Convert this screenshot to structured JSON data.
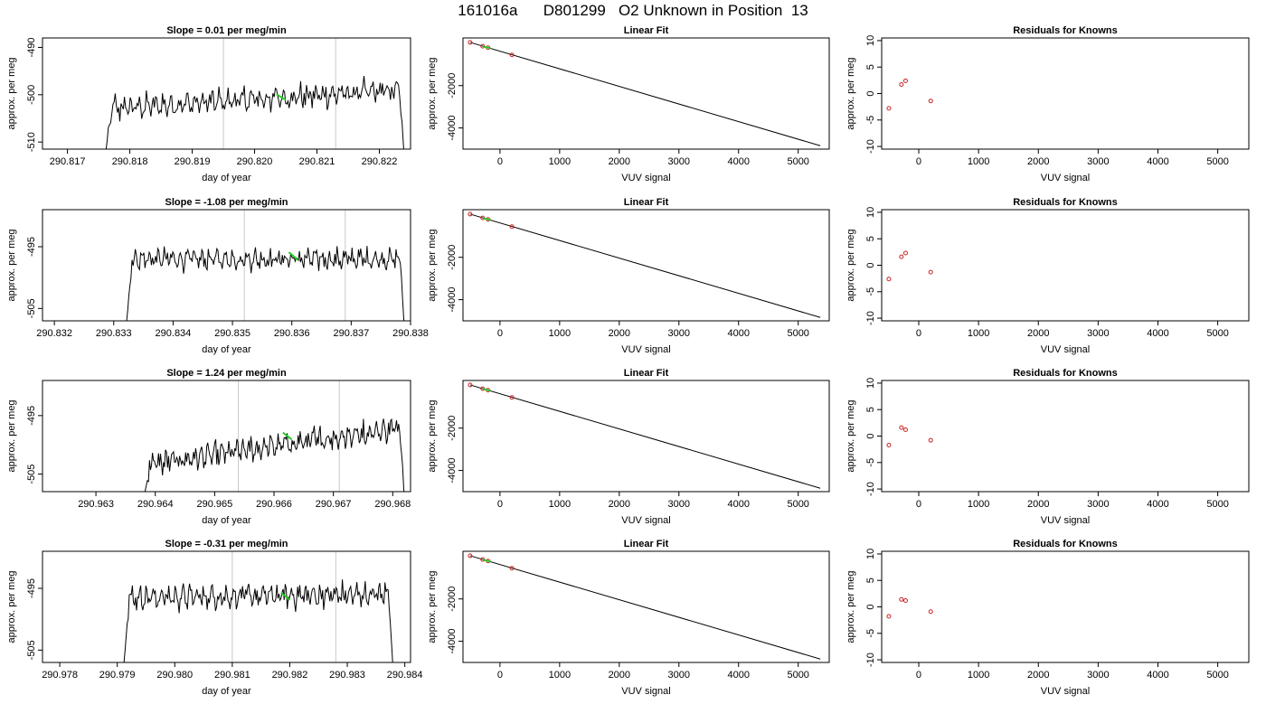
{
  "figure_title": "161016a      D801299   O2 Unknown in Position  13",
  "colors": {
    "trace": "#000000",
    "highlight": "#22cc22",
    "residual": "#cc2222",
    "marker_line": "#c8c8c8"
  },
  "chart_data": [
    {
      "type": "line",
      "row": 0,
      "kind": "timeseries",
      "title": "Slope =  0.01  per meg/min",
      "xlabel": "day of year",
      "ylabel": "approx. per meg",
      "xlim": [
        290.8166,
        290.8225
      ],
      "ylim": [
        -511.5,
        -488
      ],
      "xticks": [
        290.817,
        290.818,
        290.819,
        290.82,
        290.821,
        290.822
      ],
      "xtick_labels": [
        "290.817",
        "290.818",
        "290.819",
        "290.820",
        "290.821",
        "290.822"
      ],
      "yticks": [
        -510,
        -500,
        -490
      ],
      "ytick_labels": [
        "-510",
        "-500",
        "-490"
      ],
      "t_start": 290.8176,
      "t_end": 290.8224,
      "base": -503.0,
      "rise": 4.0,
      "amp": 2.2,
      "vlines": [
        290.8195,
        290.8213
      ],
      "highlight": [
        290.82035,
        290.8205
      ],
      "highlight_y": -500.5
    },
    {
      "type": "line",
      "row": 1,
      "kind": "timeseries",
      "title": "Slope =  -1.08  per meg/min",
      "xlabel": "day of year",
      "ylabel": "approx. per meg",
      "xlim": [
        290.8318,
        290.838
      ],
      "ylim": [
        -507,
        -489
      ],
      "xticks": [
        290.832,
        290.833,
        290.834,
        290.835,
        290.836,
        290.837,
        290.838
      ],
      "xtick_labels": [
        "290.832",
        "290.833",
        "290.834",
        "290.835",
        "290.836",
        "290.837",
        "290.838"
      ],
      "yticks": [
        -505,
        -495
      ],
      "ytick_labels": [
        "-505",
        "-495"
      ],
      "t_start": 290.8332,
      "t_end": 290.8379,
      "base": -497.0,
      "rise": 0.0,
      "amp": 1.4,
      "vlines": [
        290.8352,
        290.8369
      ],
      "highlight": [
        290.83595,
        290.8361
      ],
      "highlight_y": -496.5
    },
    {
      "type": "line",
      "row": 2,
      "kind": "timeseries",
      "title": "Slope =  1.24  per meg/min",
      "xlabel": "day of year",
      "ylabel": "approx. per meg",
      "xlim": [
        290.9621,
        290.9683
      ],
      "ylim": [
        -508,
        -489
      ],
      "xticks": [
        290.963,
        290.964,
        290.965,
        290.966,
        290.967,
        290.968
      ],
      "xtick_labels": [
        "290.963",
        "290.964",
        "290.965",
        "290.966",
        "290.967",
        "290.968"
      ],
      "yticks": [
        -505,
        -495
      ],
      "ytick_labels": [
        "-505",
        "-495"
      ],
      "t_start": 290.9638,
      "t_end": 290.9682,
      "base": -503.5,
      "rise": 6.5,
      "amp": 1.8,
      "vlines": [
        290.9654,
        290.9671
      ],
      "highlight": [
        290.96615,
        290.9663
      ],
      "highlight_y": -498.5
    },
    {
      "type": "line",
      "row": 3,
      "kind": "timeseries",
      "title": "Slope =  -0.31  per meg/min",
      "xlabel": "day of year",
      "ylabel": "approx. per meg",
      "xlim": [
        290.9777,
        290.9841
      ],
      "ylim": [
        -507,
        -489
      ],
      "xticks": [
        290.978,
        290.979,
        290.98,
        290.981,
        290.982,
        290.983,
        290.984
      ],
      "xtick_labels": [
        "290.978",
        "290.979",
        "290.980",
        "290.981",
        "290.982",
        "290.983",
        "290.984"
      ],
      "yticks": [
        -505,
        -495
      ],
      "ytick_labels": [
        "-505",
        "-495"
      ],
      "t_start": 290.9791,
      "t_end": 290.9838,
      "base": -496.5,
      "rise": 0.5,
      "amp": 1.6,
      "vlines": [
        290.981,
        290.9828
      ],
      "highlight": [
        290.98185,
        290.982
      ],
      "highlight_y": -496.3
    },
    {
      "type": "scatter",
      "row": 0,
      "kind": "linear",
      "title": "Linear Fit",
      "xlabel": "VUV signal",
      "ylabel": "approx. per meg",
      "xlim": [
        -620,
        5520
      ],
      "ylim": [
        -5000,
        250
      ],
      "xticks": [
        0,
        1000,
        2000,
        3000,
        4000,
        5000
      ],
      "xtick_labels": [
        "0",
        "1000",
        "2000",
        "3000",
        "4000",
        "5000"
      ],
      "yticks": [
        -4000,
        -2000
      ],
      "ytick_labels": [
        "-4000",
        "-2000"
      ],
      "fit_line": [
        [
          -500,
          40
        ],
        [
          5370,
          -4840
        ]
      ],
      "points": [
        [
          -500,
          40
        ],
        [
          -290,
          -140
        ],
        [
          -200,
          -210
        ],
        [
          200,
          -550
        ]
      ],
      "highlight_point": [
        -220,
        -195
      ]
    },
    {
      "type": "scatter",
      "row": 1,
      "kind": "linear",
      "title": "Linear Fit",
      "xlabel": "VUV signal",
      "ylabel": "approx. per meg",
      "xlim": [
        -620,
        5520
      ],
      "ylim": [
        -5000,
        250
      ],
      "xticks": [
        0,
        1000,
        2000,
        3000,
        4000,
        5000
      ],
      "xtick_labels": [
        "0",
        "1000",
        "2000",
        "3000",
        "4000",
        "5000"
      ],
      "yticks": [
        -4000,
        -2000
      ],
      "ytick_labels": [
        "-4000",
        "-2000"
      ],
      "fit_line": [
        [
          -500,
          40
        ],
        [
          5370,
          -4840
        ]
      ],
      "points": [
        [
          -500,
          40
        ],
        [
          -290,
          -140
        ],
        [
          -200,
          -210
        ],
        [
          200,
          -550
        ]
      ],
      "highlight_point": [
        -220,
        -195
      ]
    },
    {
      "type": "scatter",
      "row": 2,
      "kind": "linear",
      "title": "Linear Fit",
      "xlabel": "VUV signal",
      "ylabel": "approx. per meg",
      "xlim": [
        -620,
        5520
      ],
      "ylim": [
        -5000,
        250
      ],
      "xticks": [
        0,
        1000,
        2000,
        3000,
        4000,
        5000
      ],
      "xtick_labels": [
        "0",
        "1000",
        "2000",
        "3000",
        "4000",
        "5000"
      ],
      "yticks": [
        -4000,
        -2000
      ],
      "ytick_labels": [
        "-4000",
        "-2000"
      ],
      "fit_line": [
        [
          -500,
          40
        ],
        [
          5370,
          -4840
        ]
      ],
      "points": [
        [
          -500,
          40
        ],
        [
          -290,
          -140
        ],
        [
          -200,
          -210
        ],
        [
          200,
          -550
        ]
      ],
      "highlight_point": [
        -220,
        -195
      ]
    },
    {
      "type": "scatter",
      "row": 3,
      "kind": "linear",
      "title": "Linear Fit",
      "xlabel": "VUV signal",
      "ylabel": "approx. per meg",
      "xlim": [
        -620,
        5520
      ],
      "ylim": [
        -5000,
        250
      ],
      "xticks": [
        0,
        1000,
        2000,
        3000,
        4000,
        5000
      ],
      "xtick_labels": [
        "0",
        "1000",
        "2000",
        "3000",
        "4000",
        "5000"
      ],
      "yticks": [
        -4000,
        -2000
      ],
      "ytick_labels": [
        "-4000",
        "-2000"
      ],
      "fit_line": [
        [
          -500,
          40
        ],
        [
          5370,
          -4840
        ]
      ],
      "points": [
        [
          -500,
          40
        ],
        [
          -290,
          -140
        ],
        [
          -200,
          -210
        ],
        [
          200,
          -550
        ]
      ],
      "highlight_point": [
        -220,
        -195
      ]
    },
    {
      "type": "scatter",
      "row": 0,
      "kind": "residual",
      "title": "Residuals for Knowns",
      "xlabel": "VUV signal",
      "ylabel": "approx. per meg",
      "xlim": [
        -620,
        5520
      ],
      "ylim": [
        -10.5,
        10.5
      ],
      "xticks": [
        0,
        1000,
        2000,
        3000,
        4000,
        5000
      ],
      "xtick_labels": [
        "0",
        "1000",
        "2000",
        "3000",
        "4000",
        "5000"
      ],
      "yticks": [
        -10,
        -5,
        0,
        5,
        10
      ],
      "ytick_labels": [
        "-10",
        "-5",
        "0",
        "5",
        "10"
      ],
      "points": [
        [
          -500,
          -2.8
        ],
        [
          -290,
          1.7
        ],
        [
          -220,
          2.4
        ],
        [
          200,
          -1.4
        ]
      ]
    },
    {
      "type": "scatter",
      "row": 1,
      "kind": "residual",
      "title": "Residuals for Knowns",
      "xlabel": "VUV signal",
      "ylabel": "approx. per meg",
      "xlim": [
        -620,
        5520
      ],
      "ylim": [
        -10.5,
        10.5
      ],
      "xticks": [
        0,
        1000,
        2000,
        3000,
        4000,
        5000
      ],
      "xtick_labels": [
        "0",
        "1000",
        "2000",
        "3000",
        "4000",
        "5000"
      ],
      "yticks": [
        -10,
        -5,
        0,
        5,
        10
      ],
      "ytick_labels": [
        "-10",
        "-5",
        "0",
        "5",
        "10"
      ],
      "points": [
        [
          -500,
          -2.6
        ],
        [
          -290,
          1.6
        ],
        [
          -220,
          2.3
        ],
        [
          200,
          -1.3
        ]
      ]
    },
    {
      "type": "scatter",
      "row": 2,
      "kind": "residual",
      "title": "Residuals for Knowns",
      "xlabel": "VUV signal",
      "ylabel": "approx. per meg",
      "xlim": [
        -620,
        5520
      ],
      "ylim": [
        -10.5,
        10.5
      ],
      "xticks": [
        0,
        1000,
        2000,
        3000,
        4000,
        5000
      ],
      "xtick_labels": [
        "0",
        "1000",
        "2000",
        "3000",
        "4000",
        "5000"
      ],
      "yticks": [
        -10,
        -5,
        0,
        5,
        10
      ],
      "ytick_labels": [
        "-10",
        "-5",
        "0",
        "5",
        "10"
      ],
      "points": [
        [
          -500,
          -1.7
        ],
        [
          -290,
          1.6
        ],
        [
          -220,
          1.2
        ],
        [
          200,
          -0.8
        ]
      ]
    },
    {
      "type": "scatter",
      "row": 3,
      "kind": "residual",
      "title": "Residuals for Knowns",
      "xlabel": "VUV signal",
      "ylabel": "approx. per meg",
      "xlim": [
        -620,
        5520
      ],
      "ylim": [
        -10.5,
        10.5
      ],
      "xticks": [
        0,
        1000,
        2000,
        3000,
        4000,
        5000
      ],
      "xtick_labels": [
        "0",
        "1000",
        "2000",
        "3000",
        "4000",
        "5000"
      ],
      "yticks": [
        -10,
        -5,
        0,
        5,
        10
      ],
      "ytick_labels": [
        "-10",
        "-5",
        "0",
        "5",
        "10"
      ],
      "points": [
        [
          -500,
          -1.8
        ],
        [
          -290,
          1.4
        ],
        [
          -220,
          1.2
        ],
        [
          200,
          -0.9
        ]
      ]
    }
  ]
}
